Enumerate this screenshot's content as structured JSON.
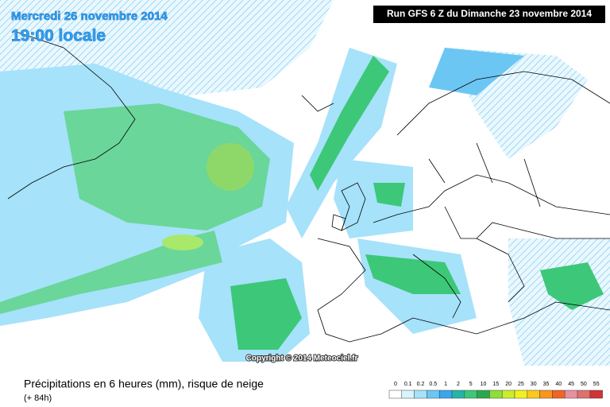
{
  "header": {
    "date": "Mercredi 26 novembre 2014",
    "time": "19:00 locale",
    "run": "Run GFS 6 Z du Dimanche 23 novembre 2014"
  },
  "copyright": "Copyright © 2014 Meteociel.fr",
  "caption": {
    "title": "Précipitations en 6 heures (mm), risque de neige",
    "lead": "(+ 84h)"
  },
  "legend": {
    "items": [
      {
        "value": 0,
        "color": "#ffffff"
      },
      {
        "value": 0.1,
        "color": "#d8f4fc"
      },
      {
        "value": 0.2,
        "color": "#a6e2fa"
      },
      {
        "value": 0.5,
        "color": "#6cc6f4"
      },
      {
        "value": 1,
        "color": "#3aa6ec"
      },
      {
        "value": 2,
        "color": "#24b4a8"
      },
      {
        "value": 5,
        "color": "#3cc878"
      },
      {
        "value": 10,
        "color": "#2aa84e"
      },
      {
        "value": 15,
        "color": "#8ede3a"
      },
      {
        "value": 20,
        "color": "#c8ee2c"
      },
      {
        "value": 25,
        "color": "#f4f01e"
      },
      {
        "value": 30,
        "color": "#f8c81c"
      },
      {
        "value": 35,
        "color": "#f8961c"
      },
      {
        "value": 40,
        "color": "#f06424"
      },
      {
        "value": 45,
        "color": "#e890a0"
      },
      {
        "value": 50,
        "color": "#e0706c"
      },
      {
        "value": 55,
        "color": "#d03434"
      }
    ]
  }
}
